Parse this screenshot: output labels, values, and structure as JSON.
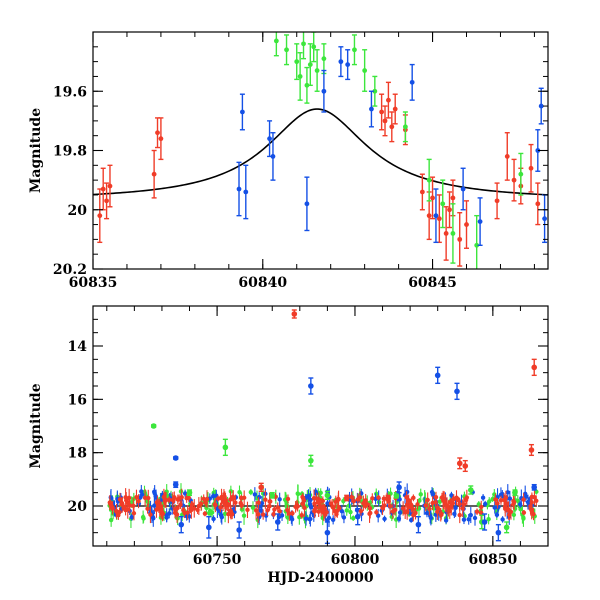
{
  "colors": {
    "red": "#f03c28",
    "green": "#3ce63c",
    "blue": "#1450e6",
    "model": "#000000"
  },
  "chart_data": [
    {
      "type": "scatter",
      "title": "",
      "xlabel": "",
      "ylabel": "Magnitude",
      "xlim": [
        60835,
        60848.4
      ],
      "ylim": [
        20.2,
        19.4
      ],
      "y_inverted": true,
      "xticks": [
        60835,
        60840,
        60845
      ],
      "yticks": [
        19.6,
        19.8,
        20,
        20.2
      ],
      "ytick_labels": [
        "19.6",
        "19.8",
        "20",
        "20.2"
      ],
      "grid": false,
      "model_curve": {
        "peak_x": 60841.6,
        "peak_y": 19.66,
        "baseline_y": 19.97,
        "width_days": 1.8
      },
      "series": [
        {
          "color": "red",
          "points": [
            {
              "x": 60835.2,
              "y": 20.02,
              "err": 0.09
            },
            {
              "x": 60835.3,
              "y": 19.93,
              "err": 0.07
            },
            {
              "x": 60835.4,
              "y": 19.97,
              "err": 0.06
            },
            {
              "x": 60835.5,
              "y": 19.92,
              "err": 0.07
            },
            {
              "x": 60836.8,
              "y": 19.88,
              "err": 0.08
            },
            {
              "x": 60836.9,
              "y": 19.74,
              "err": 0.05
            },
            {
              "x": 60837.0,
              "y": 19.76,
              "err": 0.07
            },
            {
              "x": 60843.5,
              "y": 19.67,
              "err": 0.06
            },
            {
              "x": 60843.6,
              "y": 19.7,
              "err": 0.05
            },
            {
              "x": 60843.7,
              "y": 19.63,
              "err": 0.06
            },
            {
              "x": 60843.8,
              "y": 19.72,
              "err": 0.05
            },
            {
              "x": 60843.9,
              "y": 19.66,
              "err": 0.05
            },
            {
              "x": 60844.2,
              "y": 19.73,
              "err": 0.05
            },
            {
              "x": 60844.7,
              "y": 19.94,
              "err": 0.06
            },
            {
              "x": 60844.9,
              "y": 20.02,
              "err": 0.08
            },
            {
              "x": 60845.0,
              "y": 19.96,
              "err": 0.07
            },
            {
              "x": 60845.2,
              "y": 20.03,
              "err": 0.08
            },
            {
              "x": 60845.4,
              "y": 20.08,
              "err": 0.09
            },
            {
              "x": 60845.5,
              "y": 20.0,
              "err": 0.06
            },
            {
              "x": 60845.6,
              "y": 19.96,
              "err": 0.06
            },
            {
              "x": 60845.8,
              "y": 20.1,
              "err": 0.09
            },
            {
              "x": 60846.0,
              "y": 20.05,
              "err": 0.08
            },
            {
              "x": 60846.9,
              "y": 19.97,
              "err": 0.06
            },
            {
              "x": 60847.2,
              "y": 19.82,
              "err": 0.08
            },
            {
              "x": 60847.4,
              "y": 19.9,
              "err": 0.07
            },
            {
              "x": 60847.6,
              "y": 19.92,
              "err": 0.06
            },
            {
              "x": 60847.9,
              "y": 19.86,
              "err": 0.08
            },
            {
              "x": 60848.1,
              "y": 19.98,
              "err": 0.07
            }
          ]
        },
        {
          "color": "green",
          "points": [
            {
              "x": 60840.4,
              "y": 19.43,
              "err": 0.05
            },
            {
              "x": 60840.7,
              "y": 19.46,
              "err": 0.05
            },
            {
              "x": 60841.0,
              "y": 19.5,
              "err": 0.06
            },
            {
              "x": 60841.1,
              "y": 19.55,
              "err": 0.08
            },
            {
              "x": 60841.2,
              "y": 19.44,
              "err": 0.05
            },
            {
              "x": 60841.3,
              "y": 19.58,
              "err": 0.06
            },
            {
              "x": 60841.4,
              "y": 19.51,
              "err": 0.07
            },
            {
              "x": 60841.5,
              "y": 19.45,
              "err": 0.05
            },
            {
              "x": 60841.6,
              "y": 19.53,
              "err": 0.07
            },
            {
              "x": 60841.8,
              "y": 19.49,
              "err": 0.05
            },
            {
              "x": 60842.7,
              "y": 19.46,
              "err": 0.05
            },
            {
              "x": 60843.0,
              "y": 19.53,
              "err": 0.07
            },
            {
              "x": 60843.3,
              "y": 19.6,
              "err": 0.05
            },
            {
              "x": 60844.2,
              "y": 19.72,
              "err": 0.05
            },
            {
              "x": 60844.9,
              "y": 19.9,
              "err": 0.07
            },
            {
              "x": 60845.3,
              "y": 19.98,
              "err": 0.08
            },
            {
              "x": 60845.6,
              "y": 20.08,
              "err": 0.1
            },
            {
              "x": 60846.3,
              "y": 20.12,
              "err": 0.1
            },
            {
              "x": 60847.6,
              "y": 19.88,
              "err": 0.07
            }
          ]
        },
        {
          "color": "blue",
          "points": [
            {
              "x": 60839.3,
              "y": 19.93,
              "err": 0.09
            },
            {
              "x": 60839.4,
              "y": 19.67,
              "err": 0.06
            },
            {
              "x": 60839.5,
              "y": 19.94,
              "err": 0.09
            },
            {
              "x": 60840.2,
              "y": 19.76,
              "err": 0.06
            },
            {
              "x": 60840.3,
              "y": 19.82,
              "err": 0.08
            },
            {
              "x": 60841.3,
              "y": 19.98,
              "err": 0.09
            },
            {
              "x": 60841.8,
              "y": 19.6,
              "err": 0.07
            },
            {
              "x": 60842.3,
              "y": 19.5,
              "err": 0.05
            },
            {
              "x": 60842.5,
              "y": 19.51,
              "err": 0.05
            },
            {
              "x": 60843.2,
              "y": 19.66,
              "err": 0.06
            },
            {
              "x": 60844.4,
              "y": 19.57,
              "err": 0.06
            },
            {
              "x": 60845.1,
              "y": 20.02,
              "err": 0.09
            },
            {
              "x": 60845.9,
              "y": 19.93,
              "err": 0.07
            },
            {
              "x": 60846.4,
              "y": 20.04,
              "err": 0.08
            },
            {
              "x": 60848.1,
              "y": 19.8,
              "err": 0.07
            },
            {
              "x": 60848.2,
              "y": 19.65,
              "err": 0.06
            },
            {
              "x": 60848.3,
              "y": 20.03,
              "err": 0.08
            }
          ]
        }
      ]
    },
    {
      "type": "scatter",
      "title": "",
      "xlabel": "HJD-2400000",
      "ylabel": "Magnitude",
      "xlim": [
        60705,
        60870
      ],
      "ylim": [
        21.5,
        12.5
      ],
      "y_inverted": true,
      "xticks": [
        60750,
        60800,
        60850
      ],
      "yticks": [
        14,
        16,
        18,
        20
      ],
      "ytick_labels": [
        "14",
        "16",
        "18",
        "20"
      ],
      "grid": false,
      "baseline_y": 20,
      "baseline_x_range": [
        60711,
        60866
      ],
      "series": [
        {
          "color": "red",
          "points": [
            {
              "x": 60778,
              "y": 12.8,
              "err": 0.15
            },
            {
              "x": 60766,
              "y": 19.3,
              "err": 0.15
            },
            {
              "x": 60838,
              "y": 18.4,
              "err": 0.2
            },
            {
              "x": 60840,
              "y": 18.5,
              "err": 0.2
            },
            {
              "x": 60864,
              "y": 17.9,
              "err": 0.2
            },
            {
              "x": 60865,
              "y": 14.8,
              "err": 0.3
            },
            {
              "x": 60797,
              "y": 19.7,
              "err": 0.1
            },
            {
              "x": 60812,
              "y": 19.7,
              "err": 0.1
            }
          ]
        },
        {
          "color": "green",
          "points": [
            {
              "x": 60727,
              "y": 17.0,
              "err": 0.05
            },
            {
              "x": 60753,
              "y": 17.8,
              "err": 0.3
            },
            {
              "x": 60784,
              "y": 18.3,
              "err": 0.2
            },
            {
              "x": 60740,
              "y": 19.5,
              "err": 0.1
            },
            {
              "x": 60770,
              "y": 19.6,
              "err": 0.1
            },
            {
              "x": 60790,
              "y": 19.6,
              "err": 0.15
            },
            {
              "x": 60815,
              "y": 19.6,
              "err": 0.1
            },
            {
              "x": 60842,
              "y": 19.4,
              "err": 0.15
            },
            {
              "x": 60858,
              "y": 19.5,
              "err": 0.1
            },
            {
              "x": 60855,
              "y": 20.8,
              "err": 0.2
            },
            {
              "x": 60846,
              "y": 20.6,
              "err": 0.25
            }
          ]
        },
        {
          "color": "blue",
          "points": [
            {
              "x": 60735,
              "y": 18.2,
              "err": 0.05
            },
            {
              "x": 60735,
              "y": 19.2,
              "err": 0.1
            },
            {
              "x": 60784,
              "y": 15.5,
              "err": 0.3
            },
            {
              "x": 60830,
              "y": 15.1,
              "err": 0.3
            },
            {
              "x": 60837,
              "y": 15.7,
              "err": 0.3
            },
            {
              "x": 60865,
              "y": 19.3,
              "err": 0.1
            },
            {
              "x": 60737,
              "y": 20.7,
              "err": 0.3
            },
            {
              "x": 60747,
              "y": 20.8,
              "err": 0.4
            },
            {
              "x": 60758,
              "y": 20.9,
              "err": 0.3
            },
            {
              "x": 60772,
              "y": 20.6,
              "err": 0.3
            },
            {
              "x": 60790,
              "y": 21.0,
              "err": 0.4
            },
            {
              "x": 60801,
              "y": 20.4,
              "err": 0.3
            },
            {
              "x": 60823,
              "y": 20.7,
              "err": 0.3
            },
            {
              "x": 60847,
              "y": 20.6,
              "err": 0.3
            },
            {
              "x": 60852,
              "y": 21.0,
              "err": 0.3
            },
            {
              "x": 60816,
              "y": 19.3,
              "err": 0.2
            }
          ]
        }
      ]
    }
  ]
}
